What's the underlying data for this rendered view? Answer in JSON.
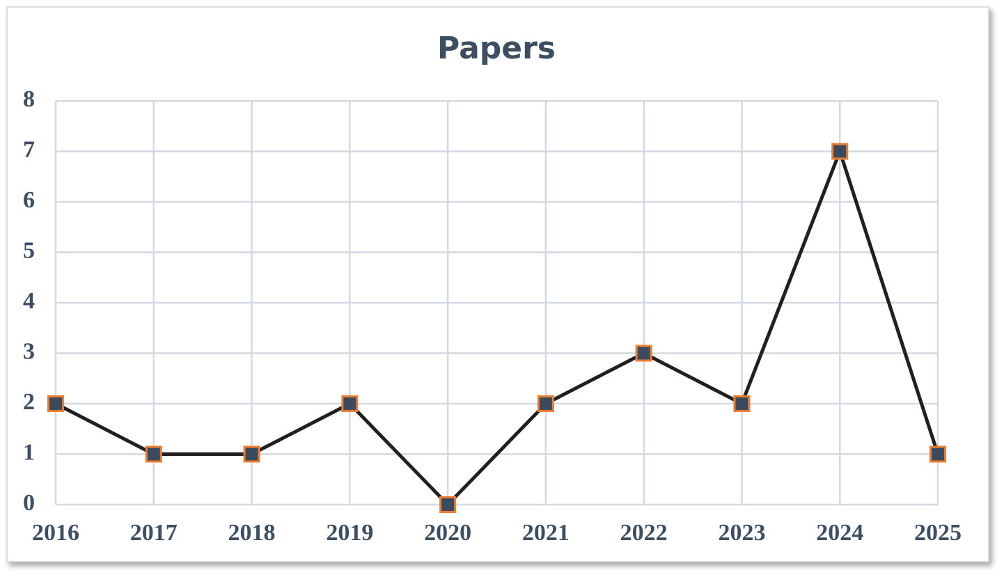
{
  "chart_data": {
    "type": "line",
    "title": "Papers",
    "x": [
      2016,
      2017,
      2018,
      2019,
      2020,
      2021,
      2022,
      2023,
      2024,
      2025
    ],
    "values": [
      2,
      1,
      1,
      2,
      0,
      2,
      3,
      2,
      7,
      1
    ],
    "xlim": [
      2016,
      2025
    ],
    "xticks": [
      2016,
      2017,
      2018,
      2019,
      2020,
      2021,
      2022,
      2023,
      2024,
      2025
    ],
    "ylim": [
      0,
      8
    ],
    "yticks": [
      0,
      1,
      2,
      3,
      4,
      5,
      6,
      7,
      8
    ],
    "grid": true,
    "color": "#231f20",
    "marker_color": "#3c4a5e",
    "marker_edge_color": "#ed7d31"
  }
}
